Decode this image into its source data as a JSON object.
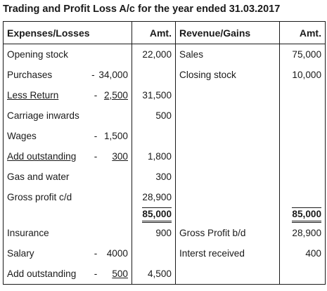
{
  "title": "Trading and Profit Loss A/c for the year ended 31.03.2017",
  "headers": {
    "debit_particulars": "Expenses/Losses",
    "debit_amount": "Amt.",
    "credit_particulars": "Revenue/Gains",
    "credit_amount": "Amt."
  },
  "rows": [
    {
      "debit": {
        "label": "Opening stock",
        "sign": "",
        "sub": "",
        "amount": "22,000"
      },
      "credit": {
        "label": "Sales",
        "amount": "75,000"
      }
    },
    {
      "debit": {
        "label": "Purchases",
        "sign": "-",
        "sub": "34,000",
        "amount": ""
      },
      "credit": {
        "label": "Closing stock",
        "amount": "10,000"
      }
    },
    {
      "debit": {
        "label": "Less Return",
        "sign": "-",
        "sub": "2,500",
        "amount": "31,500"
      },
      "credit": {
        "label": "",
        "amount": ""
      }
    },
    {
      "debit": {
        "label": "Carriage inwards",
        "sign": "",
        "sub": "",
        "amount": "500"
      },
      "credit": {
        "label": "",
        "amount": ""
      }
    },
    {
      "debit": {
        "label": "Wages",
        "sign": "-",
        "sub": "1,500",
        "amount": ""
      },
      "credit": {
        "label": "",
        "amount": ""
      }
    },
    {
      "debit": {
        "label": "Add outstanding",
        "sign": "-",
        "sub": "300",
        "amount": "1,800"
      },
      "credit": {
        "label": "",
        "amount": ""
      }
    },
    {
      "debit": {
        "label": "Gas and water",
        "sign": "",
        "sub": "",
        "amount": "300"
      },
      "credit": {
        "label": "",
        "amount": ""
      }
    },
    {
      "debit": {
        "label": "Gross profit c/d",
        "sign": "",
        "sub": "",
        "amount": "28,900"
      },
      "credit": {
        "label": "",
        "amount": ""
      }
    }
  ],
  "trading_total": {
    "debit": "85,000",
    "credit": "85,000"
  },
  "pl_rows": [
    {
      "debit": {
        "label": "Insurance",
        "sign": "",
        "sub": "",
        "amount": "900"
      },
      "credit": {
        "label": "Gross Profit b/d",
        "amount": "28,900"
      }
    },
    {
      "debit": {
        "label": "Salary",
        "sign": "-",
        "sub": "4000",
        "amount": ""
      },
      "credit": {
        "label": "Interst received",
        "amount": "400"
      }
    },
    {
      "debit": {
        "label": "Add outstanding",
        "sign": "-",
        "sub": "500",
        "amount": "4,500"
      },
      "credit": {
        "label": "",
        "amount": ""
      }
    }
  ]
}
